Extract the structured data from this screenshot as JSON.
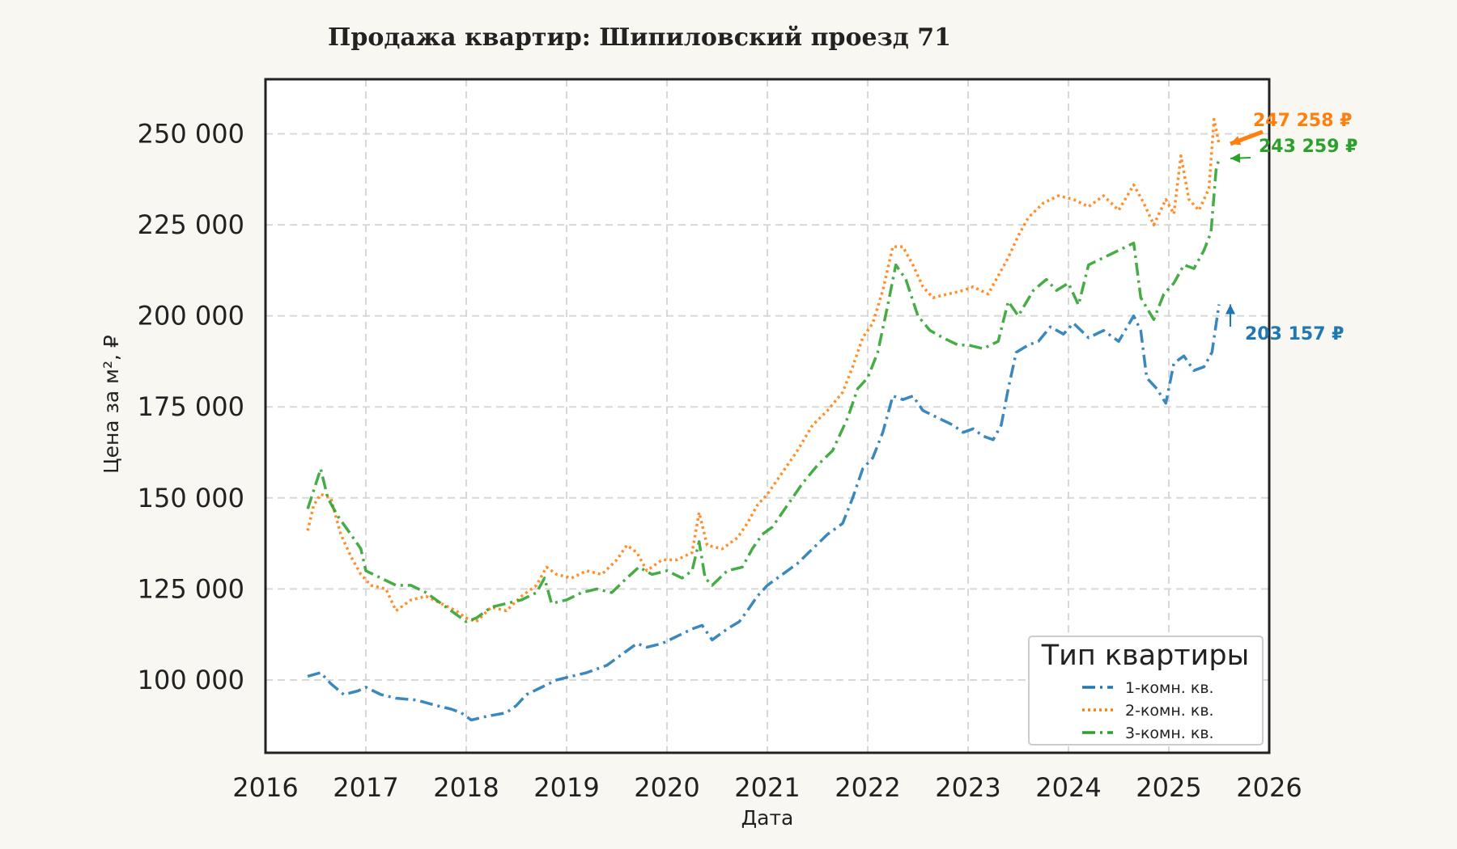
{
  "chart_data": {
    "type": "line",
    "title": "Продажа квартир: Шипиловский проезд 71",
    "xlabel": "Дата",
    "ylabel": "Цена за м², ₽",
    "xlim": [
      2016.0,
      2026.0
    ],
    "ylim": [
      80000,
      265000
    ],
    "x_ticks": [
      "2016",
      "2017",
      "2018",
      "2019",
      "2020",
      "2021",
      "2022",
      "2023",
      "2024",
      "2025",
      "2026"
    ],
    "y_ticks": [
      {
        "value": 100000,
        "label": "100 000"
      },
      {
        "value": 125000,
        "label": "125 000"
      },
      {
        "value": 150000,
        "label": "150 000"
      },
      {
        "value": 175000,
        "label": "175 000"
      },
      {
        "value": 200000,
        "label": "200 000"
      },
      {
        "value": 225000,
        "label": "225 000"
      },
      {
        "value": 250000,
        "label": "250 000"
      }
    ],
    "grid": true,
    "legend": {
      "title": "Тип квартиры",
      "position": "lower-right"
    },
    "series": [
      {
        "name": "1-комн. кв.",
        "color": "#1f77b4",
        "dash": "dashdot",
        "end_label": "203 157 ₽",
        "points": [
          [
            2016.42,
            101000
          ],
          [
            2016.55,
            102000
          ],
          [
            2016.65,
            99000
          ],
          [
            2016.78,
            96000
          ],
          [
            2016.92,
            97000
          ],
          [
            2017.0,
            98000
          ],
          [
            2017.15,
            96000
          ],
          [
            2017.3,
            95000
          ],
          [
            2017.5,
            94500
          ],
          [
            2017.7,
            93000
          ],
          [
            2017.85,
            92000
          ],
          [
            2017.95,
            91000
          ],
          [
            2018.05,
            89000
          ],
          [
            2018.2,
            90000
          ],
          [
            2018.4,
            91000
          ],
          [
            2018.5,
            93000
          ],
          [
            2018.6,
            96000
          ],
          [
            2018.75,
            98000
          ],
          [
            2018.9,
            100000
          ],
          [
            2019.05,
            101000
          ],
          [
            2019.2,
            102000
          ],
          [
            2019.4,
            104000
          ],
          [
            2019.55,
            107000
          ],
          [
            2019.7,
            110000
          ],
          [
            2019.8,
            109000
          ],
          [
            2019.95,
            110000
          ],
          [
            2020.1,
            112000
          ],
          [
            2020.25,
            114000
          ],
          [
            2020.35,
            115000
          ],
          [
            2020.45,
            111000
          ],
          [
            2020.6,
            114000
          ],
          [
            2020.72,
            116000
          ],
          [
            2020.8,
            119000
          ],
          [
            2020.9,
            123000
          ],
          [
            2021.0,
            126000
          ],
          [
            2021.15,
            129000
          ],
          [
            2021.3,
            132000
          ],
          [
            2021.45,
            136000
          ],
          [
            2021.6,
            140000
          ],
          [
            2021.75,
            143000
          ],
          [
            2021.85,
            150000
          ],
          [
            2021.95,
            158000
          ],
          [
            2022.05,
            161000
          ],
          [
            2022.15,
            168000
          ],
          [
            2022.25,
            178000
          ],
          [
            2022.35,
            177000
          ],
          [
            2022.45,
            178000
          ],
          [
            2022.55,
            174000
          ],
          [
            2022.7,
            172000
          ],
          [
            2022.85,
            170000
          ],
          [
            2022.95,
            168000
          ],
          [
            2023.05,
            169000
          ],
          [
            2023.15,
            167000
          ],
          [
            2023.25,
            166000
          ],
          [
            2023.33,
            170000
          ],
          [
            2023.4,
            180000
          ],
          [
            2023.48,
            190000
          ],
          [
            2023.6,
            192000
          ],
          [
            2023.7,
            193000
          ],
          [
            2023.82,
            197000
          ],
          [
            2023.95,
            195000
          ],
          [
            2024.05,
            198000
          ],
          [
            2024.2,
            194000
          ],
          [
            2024.35,
            196000
          ],
          [
            2024.5,
            193000
          ],
          [
            2024.65,
            200000
          ],
          [
            2024.72,
            196000
          ],
          [
            2024.78,
            183000
          ],
          [
            2024.88,
            180000
          ],
          [
            2024.97,
            176000
          ],
          [
            2025.05,
            187000
          ],
          [
            2025.15,
            189000
          ],
          [
            2025.25,
            185000
          ],
          [
            2025.35,
            186000
          ],
          [
            2025.43,
            190000
          ],
          [
            2025.5,
            203157
          ]
        ]
      },
      {
        "name": "2-комн. кв.",
        "color": "#ff7f0e",
        "dash": "dotted",
        "end_label": "247 258 ₽",
        "points": [
          [
            2016.42,
            141000
          ],
          [
            2016.48,
            148000
          ],
          [
            2016.55,
            151000
          ],
          [
            2016.65,
            150000
          ],
          [
            2016.75,
            140000
          ],
          [
            2016.85,
            134000
          ],
          [
            2016.95,
            129000
          ],
          [
            2017.05,
            126000
          ],
          [
            2017.2,
            125000
          ],
          [
            2017.3,
            119000
          ],
          [
            2017.45,
            122000
          ],
          [
            2017.6,
            123000
          ],
          [
            2017.75,
            121000
          ],
          [
            2017.9,
            119000
          ],
          [
            2018.0,
            117000
          ],
          [
            2018.1,
            116000
          ],
          [
            2018.25,
            120000
          ],
          [
            2018.4,
            119000
          ],
          [
            2018.55,
            123000
          ],
          [
            2018.7,
            126000
          ],
          [
            2018.8,
            131000
          ],
          [
            2018.9,
            129000
          ],
          [
            2019.05,
            128000
          ],
          [
            2019.2,
            130000
          ],
          [
            2019.35,
            129000
          ],
          [
            2019.5,
            133000
          ],
          [
            2019.6,
            137000
          ],
          [
            2019.7,
            135000
          ],
          [
            2019.8,
            130000
          ],
          [
            2019.95,
            133000
          ],
          [
            2020.1,
            133000
          ],
          [
            2020.25,
            135000
          ],
          [
            2020.32,
            146000
          ],
          [
            2020.4,
            137000
          ],
          [
            2020.55,
            136000
          ],
          [
            2020.7,
            139000
          ],
          [
            2020.8,
            143000
          ],
          [
            2020.9,
            148000
          ],
          [
            2021.0,
            151000
          ],
          [
            2021.15,
            157000
          ],
          [
            2021.3,
            163000
          ],
          [
            2021.45,
            170000
          ],
          [
            2021.6,
            174000
          ],
          [
            2021.75,
            179000
          ],
          [
            2021.85,
            186000
          ],
          [
            2021.95,
            194000
          ],
          [
            2022.05,
            198000
          ],
          [
            2022.15,
            207000
          ],
          [
            2022.25,
            219000
          ],
          [
            2022.35,
            219000
          ],
          [
            2022.45,
            214000
          ],
          [
            2022.55,
            208000
          ],
          [
            2022.65,
            205000
          ],
          [
            2022.8,
            206000
          ],
          [
            2022.95,
            207000
          ],
          [
            2023.05,
            208000
          ],
          [
            2023.2,
            206000
          ],
          [
            2023.3,
            211000
          ],
          [
            2023.4,
            216000
          ],
          [
            2023.5,
            222000
          ],
          [
            2023.6,
            227000
          ],
          [
            2023.75,
            231000
          ],
          [
            2023.9,
            233000
          ],
          [
            2024.05,
            232000
          ],
          [
            2024.2,
            230000
          ],
          [
            2024.35,
            233000
          ],
          [
            2024.5,
            229000
          ],
          [
            2024.65,
            236000
          ],
          [
            2024.75,
            231000
          ],
          [
            2024.85,
            225000
          ],
          [
            2024.97,
            232000
          ],
          [
            2025.05,
            228000
          ],
          [
            2025.12,
            244000
          ],
          [
            2025.2,
            232000
          ],
          [
            2025.3,
            229000
          ],
          [
            2025.4,
            235000
          ],
          [
            2025.45,
            254000
          ],
          [
            2025.5,
            247258
          ]
        ]
      },
      {
        "name": "3-комн. кв.",
        "color": "#2ca02c",
        "dash": "dashdot",
        "end_label": "243 259 ₽",
        "points": [
          [
            2016.42,
            147000
          ],
          [
            2016.48,
            152000
          ],
          [
            2016.55,
            158000
          ],
          [
            2016.62,
            150000
          ],
          [
            2016.72,
            145000
          ],
          [
            2016.85,
            140000
          ],
          [
            2016.95,
            136000
          ],
          [
            2017.0,
            130000
          ],
          [
            2017.15,
            128000
          ],
          [
            2017.3,
            126000
          ],
          [
            2017.45,
            126000
          ],
          [
            2017.6,
            124000
          ],
          [
            2017.75,
            121000
          ],
          [
            2017.9,
            118000
          ],
          [
            2018.0,
            116000
          ],
          [
            2018.1,
            117000
          ],
          [
            2018.25,
            120000
          ],
          [
            2018.4,
            121000
          ],
          [
            2018.55,
            122000
          ],
          [
            2018.7,
            124000
          ],
          [
            2018.78,
            128000
          ],
          [
            2018.85,
            121000
          ],
          [
            2019.0,
            122000
          ],
          [
            2019.15,
            124000
          ],
          [
            2019.3,
            125000
          ],
          [
            2019.45,
            124000
          ],
          [
            2019.6,
            128000
          ],
          [
            2019.72,
            131000
          ],
          [
            2019.85,
            129000
          ],
          [
            2020.0,
            130000
          ],
          [
            2020.15,
            128000
          ],
          [
            2020.25,
            130000
          ],
          [
            2020.32,
            138000
          ],
          [
            2020.38,
            128000
          ],
          [
            2020.45,
            126000
          ],
          [
            2020.6,
            130000
          ],
          [
            2020.75,
            131000
          ],
          [
            2020.85,
            136000
          ],
          [
            2020.95,
            140000
          ],
          [
            2021.05,
            142000
          ],
          [
            2021.2,
            148000
          ],
          [
            2021.35,
            154000
          ],
          [
            2021.5,
            159000
          ],
          [
            2021.65,
            163000
          ],
          [
            2021.8,
            172000
          ],
          [
            2021.9,
            180000
          ],
          [
            2022.0,
            183000
          ],
          [
            2022.1,
            190000
          ],
          [
            2022.2,
            203000
          ],
          [
            2022.28,
            214000
          ],
          [
            2022.38,
            210000
          ],
          [
            2022.5,
            200000
          ],
          [
            2022.62,
            196000
          ],
          [
            2022.75,
            194000
          ],
          [
            2022.9,
            192000
          ],
          [
            2023.0,
            192000
          ],
          [
            2023.15,
            191000
          ],
          [
            2023.3,
            193000
          ],
          [
            2023.4,
            204000
          ],
          [
            2023.5,
            200000
          ],
          [
            2023.65,
            207000
          ],
          [
            2023.78,
            210000
          ],
          [
            2023.88,
            207000
          ],
          [
            2024.0,
            209000
          ],
          [
            2024.1,
            203000
          ],
          [
            2024.2,
            214000
          ],
          [
            2024.35,
            216000
          ],
          [
            2024.5,
            218000
          ],
          [
            2024.65,
            220000
          ],
          [
            2024.72,
            205000
          ],
          [
            2024.85,
            199000
          ],
          [
            2024.95,
            206000
          ],
          [
            2025.05,
            209000
          ],
          [
            2025.15,
            214000
          ],
          [
            2025.25,
            213000
          ],
          [
            2025.35,
            218000
          ],
          [
            2025.42,
            223000
          ],
          [
            2025.47,
            240000
          ],
          [
            2025.5,
            243259
          ]
        ]
      }
    ]
  }
}
